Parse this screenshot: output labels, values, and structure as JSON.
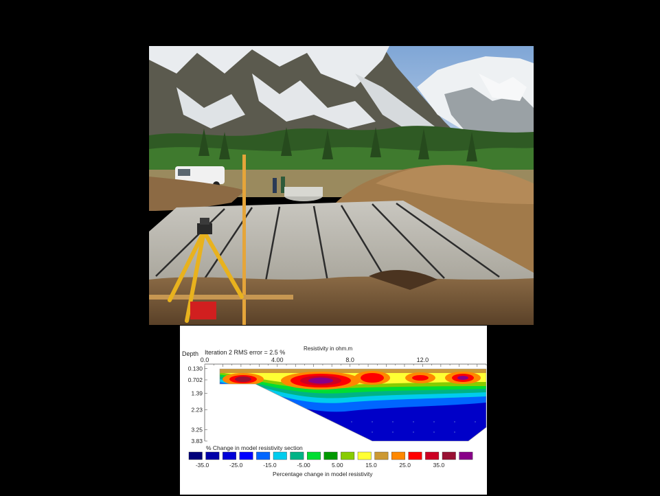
{
  "photo": {
    "subject": "gravel-bed-with-pipes"
  },
  "inversion": {
    "title_fragment": "Resistivity in ohm.m",
    "depth_label": "Depth",
    "iteration_label": "Iteration 2 RMS error = 2.5 %",
    "x_ticks": [
      "0.0",
      "4.00",
      "8.0",
      "12.0"
    ],
    "x_tick_values": [
      0,
      4,
      8,
      12
    ],
    "x_range": [
      0,
      15.5
    ],
    "depth_ticks": [
      "0.130",
      "0.702",
      "1.39",
      "2.23",
      "3.25",
      "3.83"
    ],
    "depth_tick_values": [
      0.13,
      0.702,
      1.39,
      2.23,
      3.25,
      3.83
    ],
    "depth_range": [
      0.0,
      3.83
    ],
    "section_title": "% Change in model resistivity section",
    "colorbar_colors": [
      "#00007a",
      "#0000a8",
      "#0000d8",
      "#0000ff",
      "#0066ff",
      "#00ccee",
      "#00b386",
      "#00dd33",
      "#009900",
      "#88cc00",
      "#ffff33",
      "#cc9933",
      "#ff8800",
      "#ff0000",
      "#cc0022",
      "#991133",
      "#880088"
    ],
    "colorbar_labels": [
      "-35.0",
      "-25.0",
      "-15.0",
      "-5.00",
      "5.00",
      "15.0",
      "25.0",
      "35.0"
    ],
    "colorbar_label_indices": [
      0,
      2,
      4,
      6,
      8,
      10,
      12,
      14
    ],
    "colorbar_title": "Percentage change in model resistivity"
  }
}
